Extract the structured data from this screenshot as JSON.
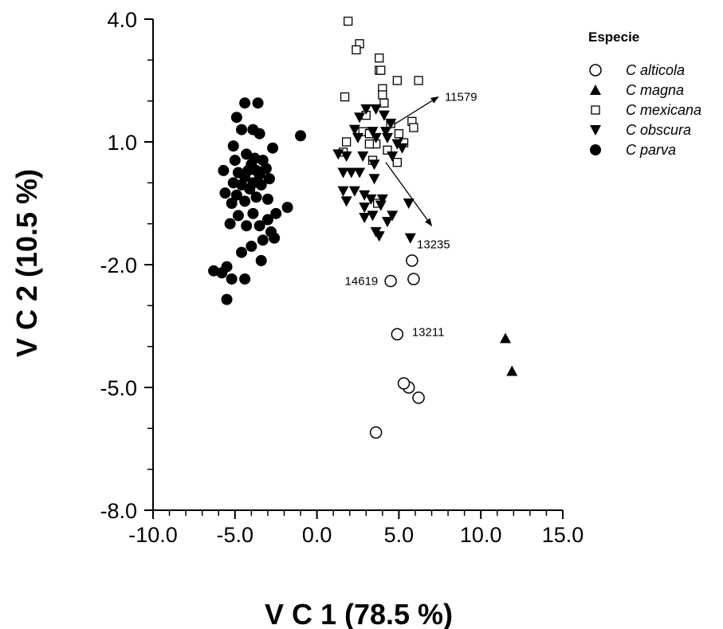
{
  "chart_data": {
    "type": "scatter",
    "title": "",
    "xlabel": "V C 1 (78.5 %)",
    "ylabel": "V C 2 (10.5 %)",
    "xlim": [
      -10.0,
      15.0
    ],
    "ylim": [
      -8.0,
      4.0
    ],
    "xticks": [
      -10.0,
      -5.0,
      0.0,
      5.0,
      10.0,
      15.0
    ],
    "xtick_labels": [
      "-10.0",
      "-5.0",
      "0.0",
      "5.0",
      "10.0",
      "15.0"
    ],
    "yticks": [
      4.0,
      1.0,
      -2.0,
      -5.0,
      -8.0
    ],
    "ytick_labels": [
      "4.0",
      "1.0",
      "-2.0",
      "-5.0",
      "-8.0"
    ],
    "x_minor_step": 1.0,
    "y_minor_step": 1.0,
    "grid": false,
    "legend": {
      "title": "Especie",
      "position": "top-right"
    },
    "series": [
      {
        "name": "C alticola",
        "marker": "circle-open",
        "points": [
          [
            4.5,
            -2.4
          ],
          [
            5.9,
            -2.35
          ],
          [
            5.8,
            -1.9
          ],
          [
            4.9,
            -3.7
          ],
          [
            5.6,
            -5.0
          ],
          [
            5.3,
            -4.9
          ],
          [
            6.2,
            -5.25
          ],
          [
            3.6,
            -6.1
          ]
        ]
      },
      {
        "name": "C magna",
        "marker": "triangle-up",
        "points": [
          [
            11.5,
            -3.8
          ],
          [
            11.9,
            -4.6
          ]
        ]
      },
      {
        "name": "C mexicana",
        "marker": "square-open",
        "points": [
          [
            1.9,
            3.95
          ],
          [
            2.6,
            3.4
          ],
          [
            2.4,
            3.25
          ],
          [
            3.8,
            3.05
          ],
          [
            3.8,
            2.75
          ],
          [
            3.9,
            2.75
          ],
          [
            4.9,
            2.5
          ],
          [
            6.2,
            2.5
          ],
          [
            4.0,
            2.3
          ],
          [
            1.7,
            2.1
          ],
          [
            4.0,
            2.15
          ],
          [
            4.1,
            1.95
          ],
          [
            5.8,
            1.5
          ],
          [
            5.9,
            1.35
          ],
          [
            4.5,
            1.45
          ],
          [
            3.0,
            1.65
          ],
          [
            5.0,
            1.2
          ],
          [
            2.8,
            1.25
          ],
          [
            3.2,
            1.2
          ],
          [
            3.6,
            0.95
          ],
          [
            5.3,
            0.98
          ],
          [
            1.8,
            1.0
          ],
          [
            1.6,
            0.75
          ],
          [
            3.2,
            0.95
          ],
          [
            4.3,
            0.8
          ],
          [
            4.9,
            0.5
          ],
          [
            3.4,
            0.55
          ],
          [
            3.7,
            -0.5
          ]
        ]
      },
      {
        "name": "C obscura",
        "marker": "triangle-down",
        "points": [
          [
            3.0,
            1.8
          ],
          [
            3.6,
            1.8
          ],
          [
            4.1,
            1.65
          ],
          [
            2.6,
            1.6
          ],
          [
            4.5,
            1.45
          ],
          [
            2.3,
            1.3
          ],
          [
            3.4,
            1.25
          ],
          [
            4.2,
            1.25
          ],
          [
            4.3,
            1.1
          ],
          [
            2.5,
            1.1
          ],
          [
            3.6,
            1.1
          ],
          [
            4.9,
            0.95
          ],
          [
            5.2,
            0.85
          ],
          [
            4.6,
            0.65
          ],
          [
            1.3,
            0.7
          ],
          [
            1.8,
            0.65
          ],
          [
            2.8,
            0.65
          ],
          [
            3.5,
            0.45
          ],
          [
            1.6,
            0.25
          ],
          [
            2.1,
            0.25
          ],
          [
            2.6,
            0.25
          ],
          [
            3.5,
            0.1
          ],
          [
            2.3,
            -0.2
          ],
          [
            1.6,
            -0.2
          ],
          [
            2.9,
            -0.3
          ],
          [
            3.3,
            -0.4
          ],
          [
            4.0,
            -0.4
          ],
          [
            1.8,
            -0.45
          ],
          [
            2.9,
            -0.6
          ],
          [
            3.9,
            -0.55
          ],
          [
            5.6,
            -0.5
          ],
          [
            3.4,
            -0.8
          ],
          [
            2.9,
            -0.85
          ],
          [
            4.6,
            -0.8
          ],
          [
            4.3,
            -0.95
          ],
          [
            3.6,
            -1.2
          ],
          [
            3.8,
            -1.3
          ],
          [
            5.7,
            -1.35
          ]
        ]
      },
      {
        "name": "C parva",
        "marker": "circle-filled",
        "points": [
          [
            -4.4,
            1.95
          ],
          [
            -3.6,
            1.95
          ],
          [
            -4.9,
            1.6
          ],
          [
            -4.6,
            1.3
          ],
          [
            -3.9,
            1.3
          ],
          [
            -3.5,
            1.2
          ],
          [
            -1.0,
            1.15
          ],
          [
            -5.1,
            0.9
          ],
          [
            -2.7,
            0.85
          ],
          [
            -4.3,
            0.7
          ],
          [
            -3.8,
            0.6
          ],
          [
            -3.3,
            0.55
          ],
          [
            -5.0,
            0.55
          ],
          [
            -4.0,
            0.45
          ],
          [
            -3.1,
            0.35
          ],
          [
            -3.7,
            0.3
          ],
          [
            -4.2,
            0.3
          ],
          [
            -4.8,
            0.25
          ],
          [
            -5.7,
            0.3
          ],
          [
            -3.5,
            0.2
          ],
          [
            -4.4,
            0.15
          ],
          [
            -2.9,
            0.1
          ],
          [
            -3.9,
            0.0
          ],
          [
            -5.1,
            0.0
          ],
          [
            -4.6,
            -0.05
          ],
          [
            -3.4,
            -0.05
          ],
          [
            -4.1,
            -0.15
          ],
          [
            -5.6,
            -0.25
          ],
          [
            -4.9,
            -0.3
          ],
          [
            -3.7,
            -0.35
          ],
          [
            -3.0,
            -0.4
          ],
          [
            -4.4,
            -0.45
          ],
          [
            -5.2,
            -0.5
          ],
          [
            -1.8,
            -0.6
          ],
          [
            -2.5,
            -0.75
          ],
          [
            -3.9,
            -0.75
          ],
          [
            -4.8,
            -0.8
          ],
          [
            -3.0,
            -0.9
          ],
          [
            -4.3,
            -1.05
          ],
          [
            -5.3,
            -1.0
          ],
          [
            -3.5,
            -1.05
          ],
          [
            -2.8,
            -1.2
          ],
          [
            -2.6,
            -1.35
          ],
          [
            -3.3,
            -1.4
          ],
          [
            -4.0,
            -1.55
          ],
          [
            -4.6,
            -1.7
          ],
          [
            -3.4,
            -1.9
          ],
          [
            -6.3,
            -2.15
          ],
          [
            -5.8,
            -2.2
          ],
          [
            -5.5,
            -2.05
          ],
          [
            -5.2,
            -2.35
          ],
          [
            -4.4,
            -2.35
          ],
          [
            -5.5,
            -2.85
          ]
        ]
      }
    ],
    "vectors": [
      {
        "from": [
          4.2,
          1.3
        ],
        "to": [
          7.4,
          2.1
        ]
      },
      {
        "from": [
          4.2,
          0.5
        ],
        "to": [
          7.0,
          -1.05
        ]
      }
    ],
    "annotations": [
      {
        "text": "11579",
        "x": 7.8,
        "y": 2.1
      },
      {
        "text": "13235",
        "x": 6.1,
        "y": -1.5
      },
      {
        "text": "14619",
        "x": 1.7,
        "y": -2.4
      },
      {
        "text": "13211",
        "x": 5.8,
        "y": -3.65
      }
    ]
  }
}
